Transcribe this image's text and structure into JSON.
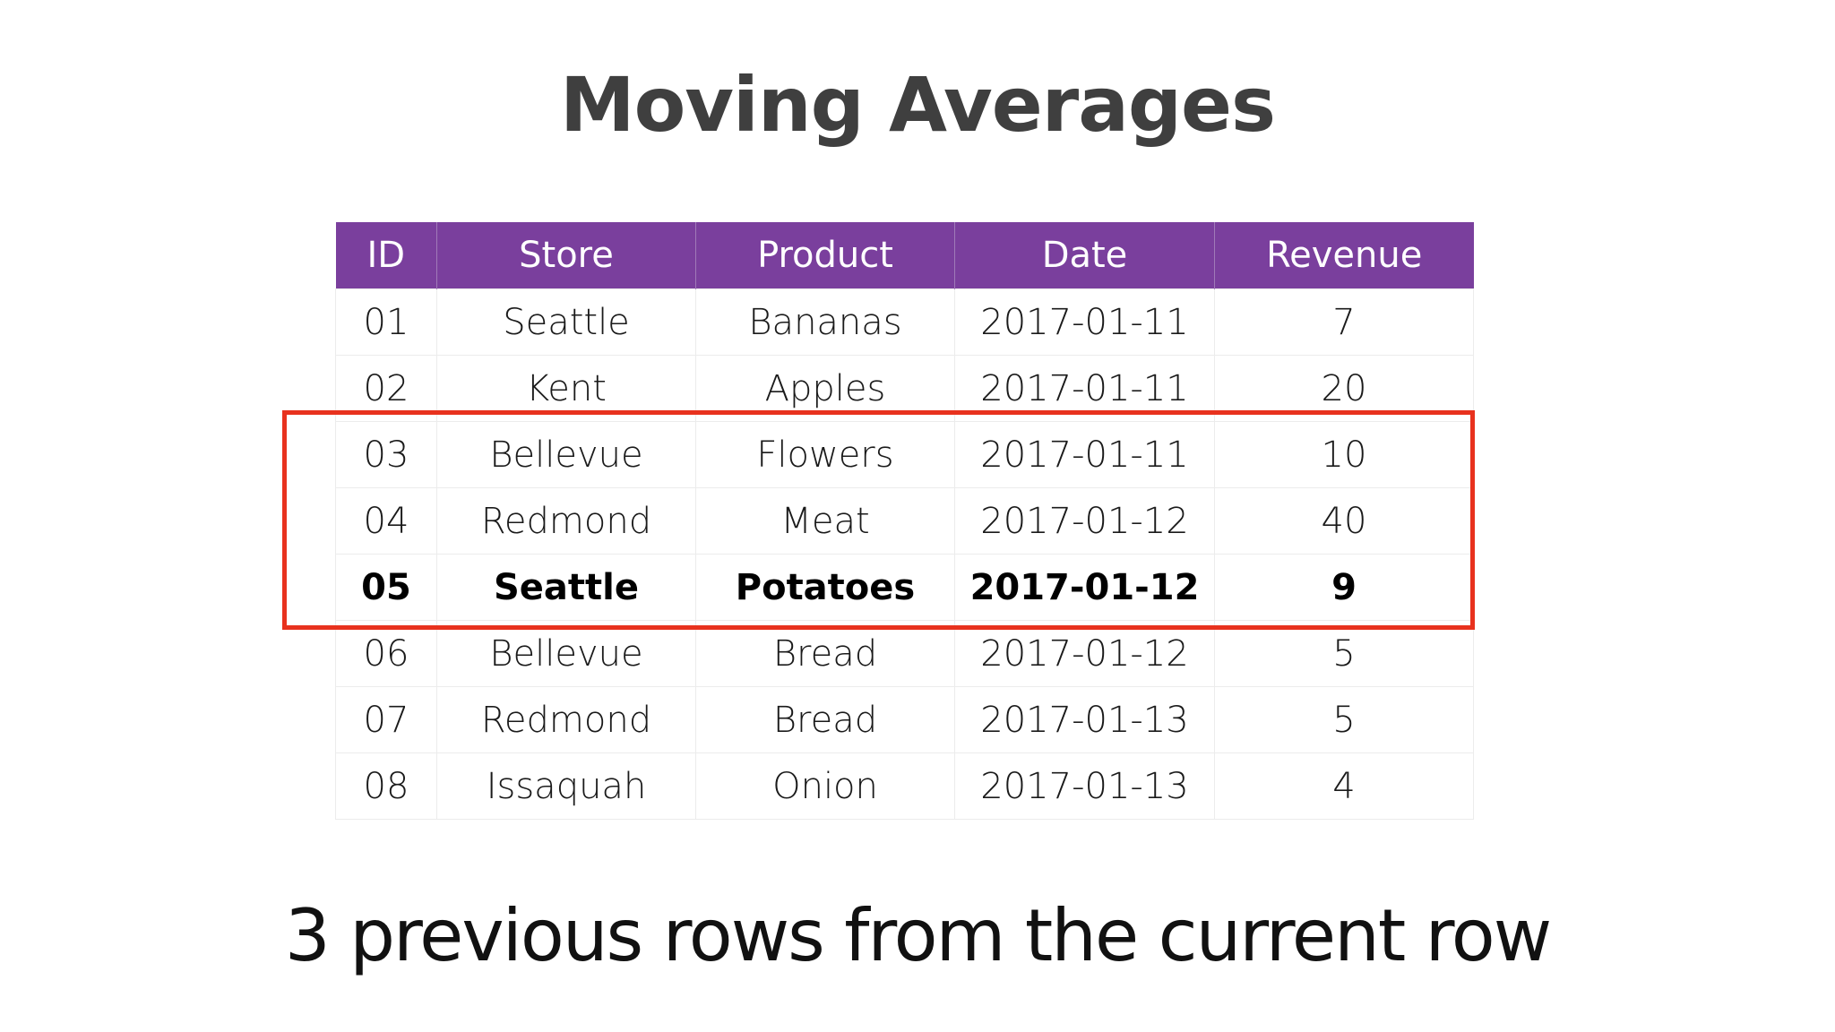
{
  "title": "Moving Averages",
  "table": {
    "headers": [
      "ID",
      "Store",
      "Product",
      "Date",
      "Revenue"
    ],
    "rows": [
      {
        "id": "01",
        "store": "Seattle",
        "product": "Bananas",
        "date": "2017-01-11",
        "revenue": "7"
      },
      {
        "id": "02",
        "store": "Kent",
        "product": "Apples",
        "date": "2017-01-11",
        "revenue": "20"
      },
      {
        "id": "03",
        "store": "Bellevue",
        "product": "Flowers",
        "date": "2017-01-11",
        "revenue": "10"
      },
      {
        "id": "04",
        "store": "Redmond",
        "product": "Meat",
        "date": "2017-01-12",
        "revenue": "40"
      },
      {
        "id": "05",
        "store": "Seattle",
        "product": "Potatoes",
        "date": "2017-01-12",
        "revenue": "9"
      },
      {
        "id": "06",
        "store": "Bellevue",
        "product": "Bread",
        "date": "2017-01-12",
        "revenue": "5"
      },
      {
        "id": "07",
        "store": "Redmond",
        "product": "Bread",
        "date": "2017-01-13",
        "revenue": "5"
      },
      {
        "id": "08",
        "store": "Issaquah",
        "product": "Onion",
        "date": "2017-01-13",
        "revenue": "4"
      }
    ]
  },
  "highlight_color": "#e8321e",
  "header_color": "#7a3f9d",
  "caption": "3 previous rows from the current row"
}
